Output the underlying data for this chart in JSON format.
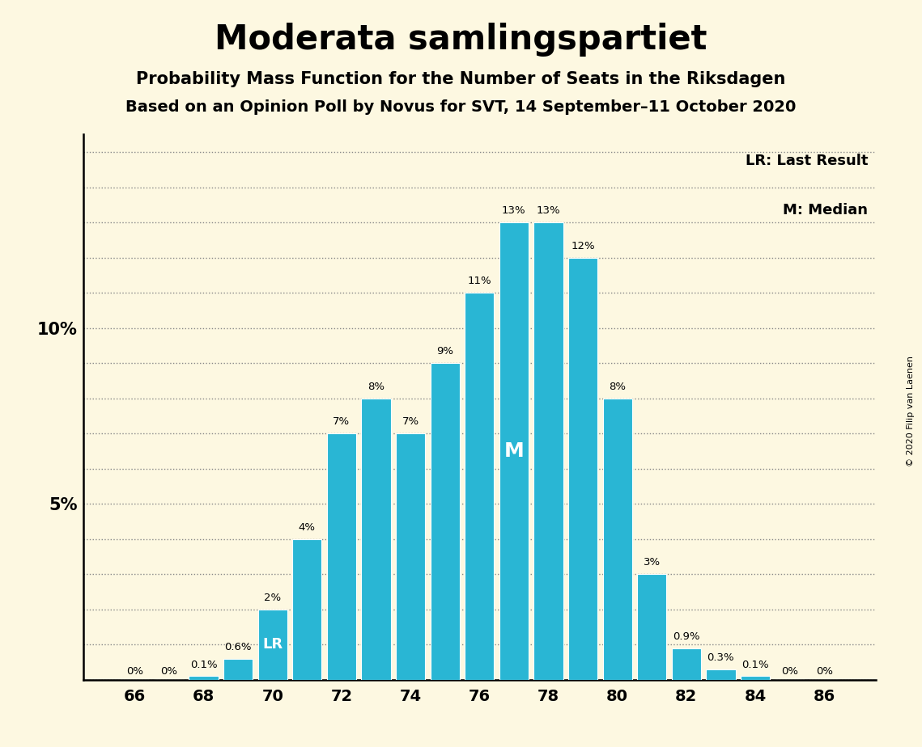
{
  "title": "Moderata samlingspartiet",
  "subtitle1": "Probability Mass Function for the Number of Seats in the Riksdagen",
  "subtitle2": "Based on an Opinion Poll by Novus for SVT, 14 September–11 October 2020",
  "copyright": "© 2020 Filip van Laenen",
  "seats": [
    66,
    67,
    68,
    69,
    70,
    71,
    72,
    73,
    74,
    75,
    76,
    77,
    78,
    79,
    80,
    81,
    82,
    83,
    84,
    85,
    86
  ],
  "probs": [
    0.0,
    0.0,
    0.1,
    0.6,
    2.0,
    4.0,
    7.0,
    8.0,
    7.0,
    9.0,
    11.0,
    13.0,
    13.0,
    12.0,
    8.0,
    3.0,
    0.9,
    0.3,
    0.1,
    0.0,
    0.0
  ],
  "bar_labels": [
    "0%",
    "0%",
    "0.1%",
    "0.6%",
    "2%",
    "4%",
    "7%",
    "8%",
    "7%",
    "9%",
    "11%",
    "13%",
    "13%",
    "12%",
    "8%",
    "3%",
    "0.9%",
    "0.3%",
    "0.1%",
    "0%",
    "0%"
  ],
  "lr_seat": 70,
  "median_seat": 77,
  "bar_color": "#29b6d4",
  "background_color": "#fdf8e1",
  "xticks": [
    66,
    68,
    70,
    72,
    74,
    76,
    78,
    80,
    82,
    84,
    86
  ],
  "ytick_labeled": [
    5,
    10
  ],
  "ymax": 15.5,
  "bar_width": 0.85
}
